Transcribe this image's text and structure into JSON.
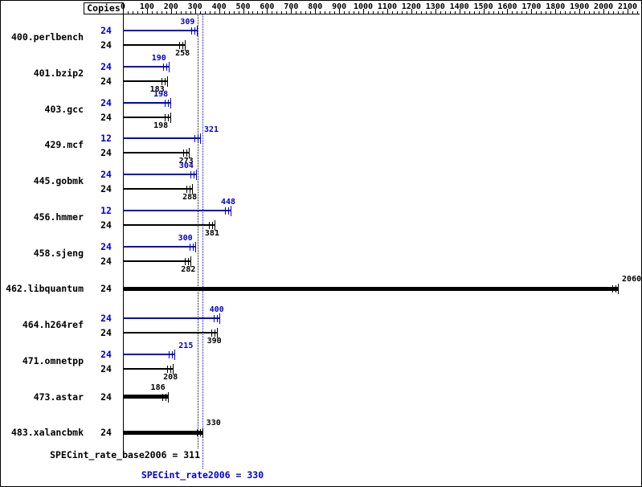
{
  "header": {
    "copies": "Copies"
  },
  "colors": {
    "peak": "#0000cd",
    "base": "#000000"
  },
  "axis": {
    "min": 0,
    "max": 2100,
    "step": 100,
    "minor_step": 20,
    "tick_labels": [
      "0",
      "100",
      "200",
      "300",
      "400",
      "500",
      "600",
      "700",
      "800",
      "900",
      "1000",
      "1100",
      "1200",
      "1300",
      "1400",
      "1500",
      "1600",
      "1700",
      "1800",
      "1900",
      "2000",
      "2100"
    ]
  },
  "chart_data": {
    "type": "bar",
    "orientation": "horizontal",
    "value_axis": {
      "min": 0,
      "max": 2100,
      "tick_step": 100,
      "grid": false
    },
    "benchmarks": [
      {
        "name": "400.perlbench",
        "bars": [
          {
            "kind": "peak",
            "copies": "24",
            "value": 309
          },
          {
            "kind": "base",
            "copies": "24",
            "value": 258
          }
        ]
      },
      {
        "name": "401.bzip2",
        "bars": [
          {
            "kind": "peak",
            "copies": "24",
            "value": 190
          },
          {
            "kind": "base",
            "copies": "24",
            "value": 183
          }
        ]
      },
      {
        "name": "403.gcc",
        "bars": [
          {
            "kind": "peak",
            "copies": "24",
            "value": 198
          },
          {
            "kind": "base",
            "copies": "24",
            "value": 198
          }
        ]
      },
      {
        "name": "429.mcf",
        "bars": [
          {
            "kind": "peak",
            "copies": "12",
            "value": 321
          },
          {
            "kind": "base",
            "copies": "24",
            "value": 273
          }
        ]
      },
      {
        "name": "445.gobmk",
        "bars": [
          {
            "kind": "peak",
            "copies": "24",
            "value": 304
          },
          {
            "kind": "base",
            "copies": "24",
            "value": 288
          }
        ]
      },
      {
        "name": "456.hmmer",
        "bars": [
          {
            "kind": "peak",
            "copies": "12",
            "value": 448
          },
          {
            "kind": "base",
            "copies": "24",
            "value": 381
          }
        ]
      },
      {
        "name": "458.sjeng",
        "bars": [
          {
            "kind": "peak",
            "copies": "24",
            "value": 300
          },
          {
            "kind": "base",
            "copies": "24",
            "value": 282
          }
        ]
      },
      {
        "name": "462.libquantum",
        "bars": [
          {
            "kind": "both",
            "copies": "24",
            "value": 2060
          }
        ]
      },
      {
        "name": "464.h264ref",
        "bars": [
          {
            "kind": "peak",
            "copies": "24",
            "value": 400
          },
          {
            "kind": "base",
            "copies": "24",
            "value": 390
          }
        ]
      },
      {
        "name": "471.omnetpp",
        "bars": [
          {
            "kind": "peak",
            "copies": "24",
            "value": 215
          },
          {
            "kind": "base",
            "copies": "24",
            "value": 208
          }
        ]
      },
      {
        "name": "473.astar",
        "bars": [
          {
            "kind": "both",
            "copies": "24",
            "value": 186
          }
        ]
      },
      {
        "name": "483.xalancbmk",
        "bars": [
          {
            "kind": "both",
            "copies": "24",
            "value": 330
          }
        ]
      }
    ],
    "summary": {
      "base_metric": "SPECint_rate_base2006",
      "base_value": 311,
      "base_text": "SPECint_rate_base2006 = 311",
      "peak_metric": "SPECint_rate2006",
      "peak_value": 330,
      "peak_text": "SPECint_rate2006 = 330"
    }
  }
}
